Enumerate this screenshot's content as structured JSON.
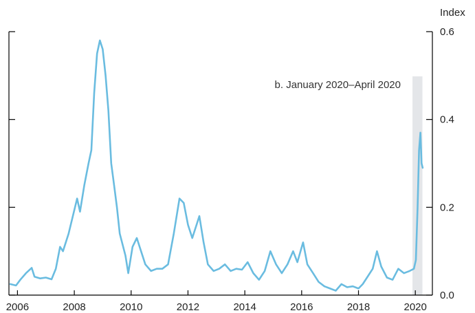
{
  "chart_data": {
    "type": "line",
    "ylabel": "Index",
    "ylim": [
      0,
      0.6
    ],
    "yticks": [
      "0.0",
      "0.2",
      "0.4",
      "0.6"
    ],
    "xlim": [
      2005.7,
      2020.6
    ],
    "xticks": [
      "2006",
      "2008",
      "2010",
      "2012",
      "2014",
      "2016",
      "2018",
      "2020"
    ],
    "grid": false,
    "line_color": "#6ABCE0",
    "shade_color": "#E4E6E9",
    "annotation": {
      "text": "b. January 2020–April 2020",
      "x_start": 2019.9,
      "x_end": 2020.25
    },
    "series": [
      {
        "values": [
          [
            2005.75,
            0.025
          ],
          [
            2005.95,
            0.022
          ],
          [
            2006.1,
            0.035
          ],
          [
            2006.3,
            0.05
          ],
          [
            2006.5,
            0.062
          ],
          [
            2006.6,
            0.042
          ],
          [
            2006.8,
            0.038
          ],
          [
            2007.0,
            0.04
          ],
          [
            2007.2,
            0.036
          ],
          [
            2007.35,
            0.06
          ],
          [
            2007.5,
            0.11
          ],
          [
            2007.6,
            0.1
          ],
          [
            2007.8,
            0.14
          ],
          [
            2007.95,
            0.18
          ],
          [
            2008.1,
            0.22
          ],
          [
            2008.2,
            0.19
          ],
          [
            2008.35,
            0.25
          ],
          [
            2008.5,
            0.3
          ],
          [
            2008.6,
            0.33
          ],
          [
            2008.7,
            0.46
          ],
          [
            2008.8,
            0.55
          ],
          [
            2008.9,
            0.58
          ],
          [
            2009.0,
            0.56
          ],
          [
            2009.1,
            0.5
          ],
          [
            2009.2,
            0.42
          ],
          [
            2009.3,
            0.3
          ],
          [
            2009.4,
            0.25
          ],
          [
            2009.5,
            0.2
          ],
          [
            2009.6,
            0.14
          ],
          [
            2009.8,
            0.09
          ],
          [
            2009.9,
            0.05
          ],
          [
            2010.05,
            0.11
          ],
          [
            2010.2,
            0.13
          ],
          [
            2010.35,
            0.1
          ],
          [
            2010.5,
            0.07
          ],
          [
            2010.7,
            0.055
          ],
          [
            2010.9,
            0.06
          ],
          [
            2011.1,
            0.06
          ],
          [
            2011.3,
            0.07
          ],
          [
            2011.5,
            0.14
          ],
          [
            2011.7,
            0.22
          ],
          [
            2011.85,
            0.21
          ],
          [
            2012.0,
            0.16
          ],
          [
            2012.15,
            0.13
          ],
          [
            2012.3,
            0.16
          ],
          [
            2012.4,
            0.18
          ],
          [
            2012.55,
            0.12
          ],
          [
            2012.7,
            0.07
          ],
          [
            2012.9,
            0.055
          ],
          [
            2013.1,
            0.06
          ],
          [
            2013.3,
            0.07
          ],
          [
            2013.5,
            0.055
          ],
          [
            2013.7,
            0.06
          ],
          [
            2013.9,
            0.058
          ],
          [
            2014.1,
            0.075
          ],
          [
            2014.3,
            0.05
          ],
          [
            2014.5,
            0.035
          ],
          [
            2014.7,
            0.055
          ],
          [
            2014.9,
            0.1
          ],
          [
            2015.1,
            0.07
          ],
          [
            2015.3,
            0.05
          ],
          [
            2015.5,
            0.07
          ],
          [
            2015.7,
            0.1
          ],
          [
            2015.85,
            0.075
          ],
          [
            2016.05,
            0.12
          ],
          [
            2016.2,
            0.07
          ],
          [
            2016.4,
            0.05
          ],
          [
            2016.6,
            0.03
          ],
          [
            2016.8,
            0.02
          ],
          [
            2017.0,
            0.015
          ],
          [
            2017.2,
            0.01
          ],
          [
            2017.4,
            0.025
          ],
          [
            2017.6,
            0.018
          ],
          [
            2017.8,
            0.02
          ],
          [
            2018.0,
            0.015
          ],
          [
            2018.15,
            0.025
          ],
          [
            2018.3,
            0.04
          ],
          [
            2018.5,
            0.06
          ],
          [
            2018.65,
            0.1
          ],
          [
            2018.8,
            0.065
          ],
          [
            2019.0,
            0.04
          ],
          [
            2019.2,
            0.035
          ],
          [
            2019.4,
            0.06
          ],
          [
            2019.6,
            0.05
          ],
          [
            2019.8,
            0.055
          ],
          [
            2019.95,
            0.06
          ],
          [
            2020.02,
            0.08
          ],
          [
            2020.08,
            0.2
          ],
          [
            2020.13,
            0.33
          ],
          [
            2020.18,
            0.37
          ],
          [
            2020.22,
            0.3
          ],
          [
            2020.26,
            0.29
          ]
        ]
      }
    ]
  }
}
